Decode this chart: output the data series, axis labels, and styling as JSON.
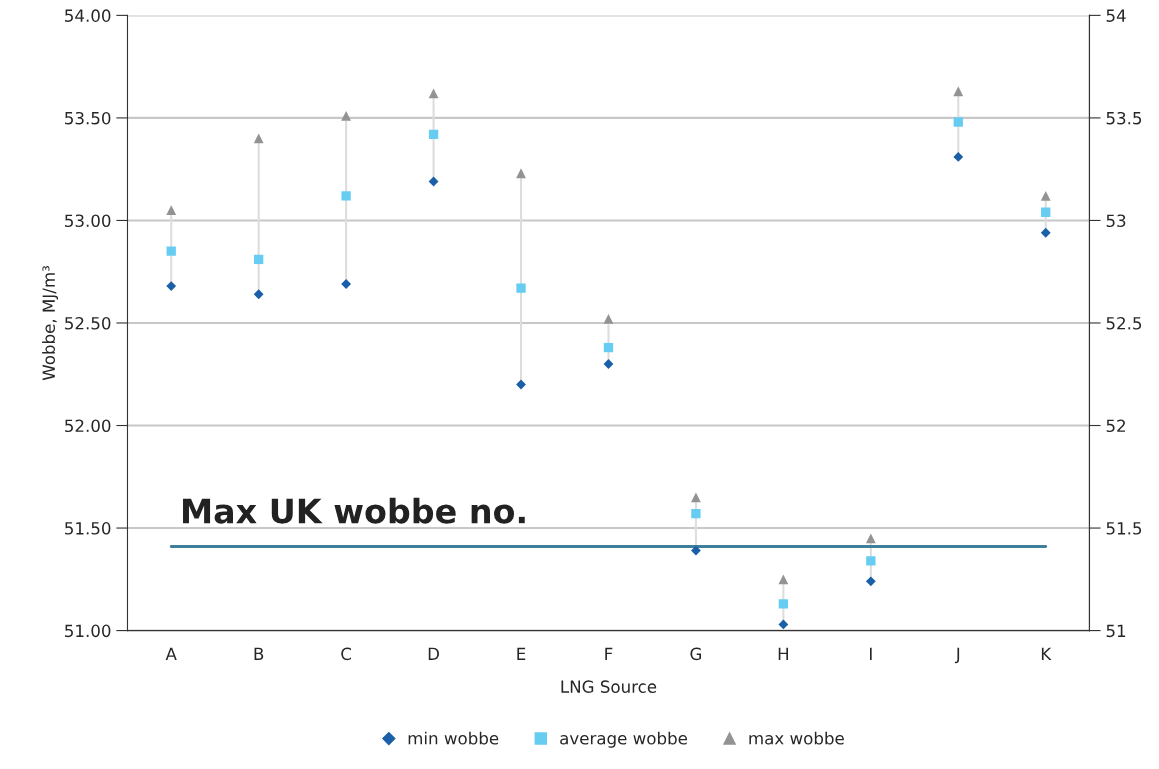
{
  "chart_data": {
    "type": "scatter",
    "xlabel": "LNG Source",
    "ylabel": "Wobbe, MJ/m³",
    "categories": [
      "A",
      "B",
      "C",
      "D",
      "E",
      "F",
      "G",
      "H",
      "I",
      "J",
      "K"
    ],
    "series": [
      {
        "name": "min wobbe",
        "color": "#1a5fa8",
        "marker": "diamond",
        "values": [
          52.68,
          52.64,
          52.69,
          53.19,
          52.2,
          52.3,
          51.39,
          51.03,
          51.24,
          53.31,
          52.94
        ]
      },
      {
        "name": "average wobbe",
        "color": "#66ccf2",
        "marker": "square",
        "values": [
          52.85,
          52.81,
          53.12,
          53.42,
          52.67,
          52.38,
          51.57,
          51.13,
          51.34,
          53.48,
          53.04
        ]
      },
      {
        "name": "max wobbe",
        "color": "#939393",
        "marker": "triangle",
        "values": [
          53.05,
          53.4,
          53.51,
          53.62,
          53.23,
          52.52,
          51.65,
          51.25,
          51.45,
          53.63,
          53.12
        ]
      }
    ],
    "ylim": [
      51,
      54
    ],
    "yticks": [
      {
        "value": 51,
        "label": "51.00"
      },
      {
        "value": 51.5,
        "label": "51.50"
      },
      {
        "value": 52,
        "label": "52.00"
      },
      {
        "value": 52.5,
        "label": "52.50"
      },
      {
        "value": 53,
        "label": "53.00"
      },
      {
        "value": 53.5,
        "label": "53.50"
      },
      {
        "value": 54,
        "label": "54.00"
      }
    ],
    "y2lim": [
      51,
      54
    ],
    "y2ticks": [
      51,
      51.5,
      52,
      52.5,
      53,
      53.5,
      54
    ],
    "ref_lines": [
      {
        "axis": "y",
        "value": 51.41,
        "label": "Max UK wobbe no.",
        "color": "#3f7f99"
      }
    ],
    "grid": "y",
    "legend": "bottom"
  }
}
